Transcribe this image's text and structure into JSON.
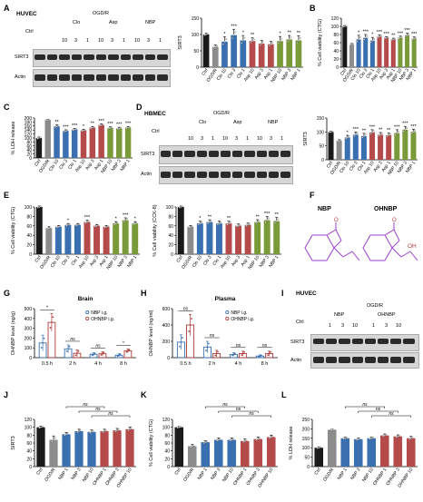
{
  "colors": {
    "black": "#1a1a1a",
    "gray": "#8c8c8c",
    "blue": "#3a6fb0",
    "red": "#b44a4a",
    "green": "#7a9a3a",
    "dark_red": "#b03a3a",
    "purple": "#9b3fd0"
  },
  "panels": {
    "A": {
      "label": "A",
      "cell": "HUVEC",
      "group": "OGD/R",
      "ctrl": "Ctrl",
      "drugs": [
        "Clo",
        "Asp",
        "NBP"
      ],
      "doses": [
        "10",
        "3",
        "1"
      ],
      "rows": [
        "SIRT3",
        "Actin"
      ]
    },
    "B": {
      "label": "B"
    },
    "C": {
      "label": "C"
    },
    "D": {
      "label": "D",
      "cell": "HBMEC",
      "group": "OGD/R",
      "ctrl": "Ctrl",
      "drugs": [
        "Clo",
        "Asp",
        "NBP"
      ],
      "doses": [
        "10",
        "3",
        "1"
      ],
      "rows": [
        "SIRT3",
        "Actin"
      ]
    },
    "E": {
      "label": "E"
    },
    "F": {
      "label": "F",
      "mol1": "NBP",
      "mol2": "OHNBP",
      "oh": "OH",
      "o": "O"
    },
    "G": {
      "label": "G"
    },
    "H": {
      "label": "H"
    },
    "I": {
      "label": "I",
      "cell": "HUVEC",
      "group": "OGD/R",
      "ctrl": "Ctrl",
      "drugs": [
        "NBP",
        "OHNBP"
      ],
      "doses": [
        "1",
        "3",
        "10"
      ],
      "rows": [
        "SIRT3",
        "Actin"
      ]
    },
    "J": {
      "label": "J"
    },
    "K": {
      "label": "K"
    },
    "L": {
      "label": "L"
    }
  },
  "chart_data": [
    {
      "id": "A-bar",
      "type": "bar",
      "ylabel": "SIRT3",
      "ylim": [
        0,
        150
      ],
      "yticks": [
        0,
        50,
        100,
        150
      ],
      "categories": [
        "Ctrl",
        "OGD/R",
        "Clo 10",
        "Clo 3",
        "Clo 1",
        "Asp 10",
        "Asp 3",
        "Asp 1",
        "NBP 10",
        "NBP 3",
        "NBP 1"
      ],
      "values": [
        100,
        62,
        78,
        98,
        82,
        80,
        72,
        70,
        80,
        85,
        82
      ],
      "errors": [
        4,
        6,
        15,
        18,
        15,
        10,
        10,
        9,
        14,
        12,
        14
      ],
      "colors": [
        "black",
        "gray",
        "blue",
        "blue",
        "blue",
        "red",
        "red",
        "red",
        "green",
        "green",
        "green"
      ],
      "sig": [
        "",
        "",
        "*",
        "***",
        "*",
        "**",
        "",
        "",
        "*",
        "**",
        "**"
      ]
    },
    {
      "id": "B",
      "type": "bar",
      "ylabel": "% Cell viability (CTG)",
      "ylim": [
        0,
        120
      ],
      "yticks": [
        0,
        20,
        40,
        60,
        80,
        100,
        120
      ],
      "categories": [
        "Ctrl",
        "OGD/R",
        "Clo 10",
        "Clo 3",
        "Clo 1",
        "Asp 10",
        "Asp 3",
        "Asp 1",
        "NBP 10",
        "NBP 3",
        "NBP 1"
      ],
      "values": [
        100,
        55,
        68,
        72,
        65,
        75,
        72,
        68,
        72,
        78,
        70
      ],
      "errors": [
        2,
        3,
        10,
        8,
        8,
        4,
        3,
        3,
        4,
        5,
        4
      ],
      "colors": [
        "black",
        "gray",
        "blue",
        "blue",
        "blue",
        "red",
        "red",
        "red",
        "green",
        "green",
        "green"
      ],
      "sig": [
        "",
        "",
        "*",
        "***",
        "*",
        "***",
        "***",
        "**",
        "***",
        "***",
        "***"
      ]
    },
    {
      "id": "C",
      "type": "bar",
      "ylabel": "% LDH release",
      "ylim": [
        0,
        200
      ],
      "yticks": [
        0,
        20,
        40,
        60,
        80,
        100,
        120,
        140,
        160,
        180,
        200
      ],
      "categories": [
        "Ctrl",
        "OGD/R",
        "Clo 10",
        "Clo 3",
        "Clo 1",
        "Asp 10",
        "Asp 3",
        "Asp 1",
        "NBP 10",
        "NBP 3",
        "NBP 1"
      ],
      "values": [
        100,
        190,
        158,
        135,
        142,
        138,
        152,
        165,
        150,
        148,
        152
      ],
      "errors": [
        5,
        3,
        8,
        6,
        6,
        6,
        6,
        6,
        6,
        6,
        6
      ],
      "colors": [
        "black",
        "gray",
        "blue",
        "blue",
        "blue",
        "red",
        "red",
        "red",
        "green",
        "green",
        "green"
      ],
      "sig": [
        "",
        "",
        "**",
        "***",
        "***",
        "*",
        "**",
        "***",
        "***",
        "***",
        "***"
      ]
    },
    {
      "id": "D-bar",
      "type": "bar",
      "ylabel": "SIRT3",
      "ylim": [
        0,
        150
      ],
      "yticks": [
        0,
        50,
        100,
        150
      ],
      "categories": [
        "Ctrl",
        "OGD/R",
        "Clo 10",
        "Clo 3",
        "Clo 1",
        "Asp 10",
        "Asp 3",
        "Asp 1",
        "NBP 10",
        "NBP 3",
        "NBP 1"
      ],
      "values": [
        100,
        68,
        80,
        90,
        85,
        98,
        90,
        88,
        96,
        108,
        100
      ],
      "errors": [
        3,
        4,
        8,
        10,
        10,
        10,
        8,
        8,
        12,
        12,
        10
      ],
      "colors": [
        "black",
        "gray",
        "blue",
        "blue",
        "blue",
        "red",
        "red",
        "red",
        "green",
        "green",
        "green"
      ],
      "sig": [
        "",
        "",
        "*",
        "***",
        "**",
        "***",
        "**",
        "**",
        "***",
        "***",
        "***"
      ]
    },
    {
      "id": "E-ctg",
      "type": "bar",
      "ylabel": "% Cell viability (CTG)",
      "ylim": [
        0,
        100
      ],
      "yticks": [
        0,
        20,
        40,
        60,
        80,
        100
      ],
      "categories": [
        "Ctrl",
        "OGD/R",
        "Clo 10",
        "Clo 3",
        "Clo 1",
        "Asp 10",
        "Asp 3",
        "Asp 1",
        "NBP 10",
        "NBP 3",
        "NBP 1"
      ],
      "values": [
        100,
        55,
        58,
        62,
        62,
        68,
        60,
        58,
        65,
        72,
        65
      ],
      "errors": [
        2,
        3,
        3,
        3,
        3,
        4,
        3,
        3,
        4,
        5,
        4
      ],
      "colors": [
        "black",
        "gray",
        "blue",
        "blue",
        "blue",
        "red",
        "red",
        "red",
        "green",
        "green",
        "green"
      ],
      "sig": [
        "",
        "",
        "",
        "*",
        "",
        "***",
        "",
        "",
        "*",
        "***",
        "*"
      ]
    },
    {
      "id": "E-cck8",
      "type": "bar",
      "ylabel": "% Cell viability (CCK-8)",
      "ylim": [
        0,
        100
      ],
      "yticks": [
        0,
        20,
        40,
        60,
        80,
        100
      ],
      "categories": [
        "Ctrl",
        "OGD/R",
        "Clo 10",
        "Clo 3",
        "Clo 1",
        "Asp 10",
        "Asp 3",
        "Asp 1",
        "NBP 10",
        "NBP 3",
        "NBP 1"
      ],
      "values": [
        100,
        58,
        65,
        68,
        65,
        65,
        60,
        62,
        68,
        72,
        70
      ],
      "errors": [
        2,
        3,
        5,
        5,
        5,
        5,
        4,
        4,
        5,
        8,
        8
      ],
      "colors": [
        "black",
        "gray",
        "blue",
        "blue",
        "blue",
        "red",
        "red",
        "red",
        "green",
        "green",
        "green"
      ],
      "sig": [
        "",
        "",
        "*",
        "**",
        "",
        "**",
        "",
        "",
        "**",
        "***",
        "**"
      ]
    },
    {
      "id": "G",
      "type": "bar",
      "title": "Brain",
      "ylabel": "OHNBP level (ng/g)",
      "ylim": [
        0,
        500
      ],
      "yticks": [
        0,
        100,
        200,
        300,
        400,
        500
      ],
      "categories": [
        "0.5 h",
        "2 h",
        "4 h",
        "8 h"
      ],
      "series": [
        {
          "name": "NBP i.g.",
          "values": [
            150,
            90,
            35,
            25
          ],
          "errors": [
            80,
            40,
            15,
            15
          ]
        },
        {
          "name": "OHNBP i.g.",
          "values": [
            360,
            45,
            40,
            70
          ],
          "errors": [
            90,
            35,
            20,
            20
          ]
        }
      ],
      "sig": [
        "*",
        "ns",
        "ns",
        "*"
      ]
    },
    {
      "id": "H",
      "type": "bar",
      "title": "Plasma",
      "ylabel": "OHNBP level (ng/ml)",
      "ylim": [
        0,
        600
      ],
      "yticks": [
        0,
        200,
        400,
        600
      ],
      "categories": [
        "0.5 h",
        "2 h",
        "4 h",
        "8 h"
      ],
      "series": [
        {
          "name": "NBP i.g.",
          "values": [
            190,
            130,
            40,
            20
          ],
          "errors": [
            90,
            70,
            20,
            15
          ]
        },
        {
          "name": "OHNBP i.g.",
          "values": [
            400,
            50,
            50,
            50
          ],
          "errors": [
            130,
            40,
            30,
            30
          ]
        }
      ],
      "sig": [
        "ns",
        "ns",
        "ns",
        "ns"
      ]
    },
    {
      "id": "J",
      "type": "bar",
      "ylabel": "SIRT3",
      "ylim": [
        0,
        120
      ],
      "yticks": [
        0,
        20,
        40,
        60,
        80,
        100,
        120
      ],
      "categories": [
        "Ctrl",
        "OGD/R",
        "NBP 1",
        "NBP 3",
        "NBP 10",
        "OHNBP 1",
        "OHNBP 3",
        "OHNBP 10"
      ],
      "values": [
        100,
        68,
        82,
        90,
        88,
        90,
        92,
        95
      ],
      "errors": [
        3,
        10,
        5,
        5,
        5,
        5,
        5,
        6
      ],
      "colors": [
        "black",
        "gray",
        "blue",
        "blue",
        "blue",
        "red",
        "red",
        "red"
      ],
      "brackets": [
        [
          2,
          5
        ],
        [
          3,
          6
        ],
        [
          4,
          7
        ]
      ],
      "bracket_label": "ns"
    },
    {
      "id": "K",
      "type": "bar",
      "ylabel": "% Cell viability (CTG)",
      "ylim": [
        0,
        120
      ],
      "yticks": [
        0,
        20,
        40,
        60,
        80,
        100,
        120
      ],
      "categories": [
        "Ctrl",
        "OGD/R",
        "NBP 1",
        "NBP 3",
        "NBP 10",
        "OHNBP 1",
        "OHNBP 3",
        "OHNBP 10"
      ],
      "values": [
        100,
        52,
        62,
        68,
        68,
        65,
        70,
        75
      ],
      "errors": [
        2,
        4,
        4,
        5,
        5,
        5,
        5,
        5
      ],
      "colors": [
        "black",
        "gray",
        "blue",
        "blue",
        "blue",
        "red",
        "red",
        "red"
      ],
      "brackets": [
        [
          2,
          5
        ],
        [
          3,
          6
        ],
        [
          4,
          7
        ]
      ],
      "bracket_label": "ns"
    },
    {
      "id": "L",
      "type": "bar",
      "ylabel": "% LDH release",
      "ylim": [
        0,
        250
      ],
      "yticks": [
        0,
        50,
        100,
        150,
        200,
        250
      ],
      "categories": [
        "Ctrl",
        "OGD/R",
        "NBP 1",
        "NBP 3",
        "NBP 10",
        "OHNBP 1",
        "OHNBP 3",
        "OHNBP 10"
      ],
      "values": [
        100,
        195,
        150,
        145,
        150,
        165,
        160,
        150
      ],
      "errors": [
        5,
        3,
        6,
        6,
        6,
        8,
        8,
        10
      ],
      "colors": [
        "black",
        "gray",
        "blue",
        "blue",
        "blue",
        "red",
        "red",
        "red"
      ],
      "brackets": [
        [
          2,
          5
        ],
        [
          3,
          6
        ],
        [
          4,
          7
        ]
      ],
      "bracket_label": "ns"
    }
  ]
}
